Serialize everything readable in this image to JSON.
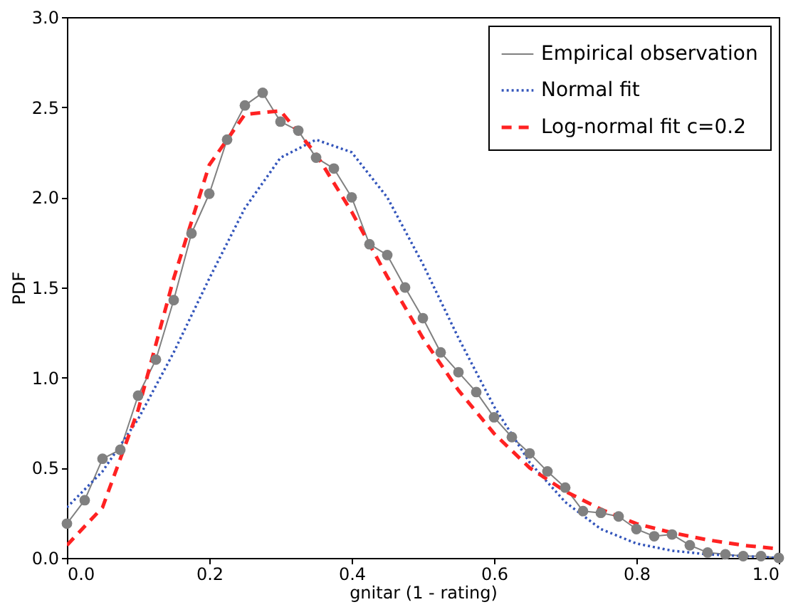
{
  "chart_data": {
    "type": "line",
    "xlabel": "gnitar (1 - rating)",
    "ylabel": "PDF",
    "xlim": [
      0,
      1
    ],
    "ylim": [
      0,
      3
    ],
    "xticks": [
      {
        "value": 0,
        "label": "0.0"
      },
      {
        "value": 0.2,
        "label": "0.2"
      },
      {
        "value": 0.4,
        "label": "0.4"
      },
      {
        "value": 0.6,
        "label": "0.6"
      },
      {
        "value": 0.8,
        "label": "0.8"
      },
      {
        "value": 1,
        "label": "1.0"
      }
    ],
    "yticks": [
      {
        "value": 0,
        "label": "0.0"
      },
      {
        "value": 0.5,
        "label": "0.5"
      },
      {
        "value": 1,
        "label": "1.0"
      },
      {
        "value": 1.5,
        "label": "1.5"
      },
      {
        "value": 2,
        "label": "2.0"
      },
      {
        "value": 2.5,
        "label": "2.5"
      },
      {
        "value": 3,
        "label": "3.0"
      }
    ],
    "grid": false,
    "legend": "top right",
    "series": [
      {
        "name": "Empirical observation",
        "color": "#808080",
        "marker": "circle",
        "line_style": "solid",
        "x": [
          0,
          0.025,
          0.05,
          0.075,
          0.1,
          0.125,
          0.15,
          0.175,
          0.2,
          0.225,
          0.25,
          0.275,
          0.3,
          0.325,
          0.35,
          0.375,
          0.4,
          0.425,
          0.45,
          0.475,
          0.5,
          0.525,
          0.55,
          0.575,
          0.6,
          0.625,
          0.65,
          0.675,
          0.7,
          0.725,
          0.75,
          0.775,
          0.8,
          0.825,
          0.85,
          0.875,
          0.9,
          0.925,
          0.95,
          0.975,
          1.0
        ],
        "values": [
          0.19,
          0.32,
          0.55,
          0.6,
          0.9,
          1.1,
          1.43,
          1.8,
          2.02,
          2.32,
          2.51,
          2.58,
          2.42,
          2.37,
          2.22,
          2.16,
          2.0,
          1.74,
          1.68,
          1.5,
          1.33,
          1.14,
          1.03,
          0.92,
          0.78,
          0.67,
          0.58,
          0.48,
          0.39,
          0.26,
          0.25,
          0.23,
          0.16,
          0.12,
          0.13,
          0.07,
          0.03,
          0.02,
          0.01,
          0.01,
          0.0
        ]
      },
      {
        "name": "Normal fit",
        "color": "#3355bb",
        "marker": "none",
        "line_style": "dotted",
        "x": [
          0,
          0.05,
          0.1,
          0.15,
          0.2,
          0.25,
          0.3,
          0.35,
          0.4,
          0.45,
          0.5,
          0.55,
          0.6,
          0.65,
          0.7,
          0.75,
          0.8,
          0.85,
          0.9,
          0.95,
          1.0
        ],
        "values": [
          0.28,
          0.48,
          0.77,
          1.14,
          1.55,
          1.94,
          2.22,
          2.32,
          2.25,
          2.0,
          1.63,
          1.22,
          0.84,
          0.53,
          0.31,
          0.16,
          0.08,
          0.04,
          0.02,
          0.01,
          0.0
        ]
      },
      {
        "name": "Log-normal fit c=0.2",
        "color": "#ff2222",
        "marker": "none",
        "line_style": "dashed",
        "x": [
          0,
          0.05,
          0.1,
          0.15,
          0.2,
          0.25,
          0.3,
          0.35,
          0.4,
          0.45,
          0.5,
          0.55,
          0.6,
          0.65,
          0.7,
          0.75,
          0.8,
          0.85,
          0.9,
          0.95,
          1.0
        ],
        "values": [
          0.07,
          0.28,
          0.82,
          1.55,
          2.18,
          2.46,
          2.48,
          2.24,
          1.92,
          1.56,
          1.22,
          0.93,
          0.69,
          0.5,
          0.37,
          0.27,
          0.19,
          0.14,
          0.1,
          0.07,
          0.05
        ]
      }
    ]
  }
}
